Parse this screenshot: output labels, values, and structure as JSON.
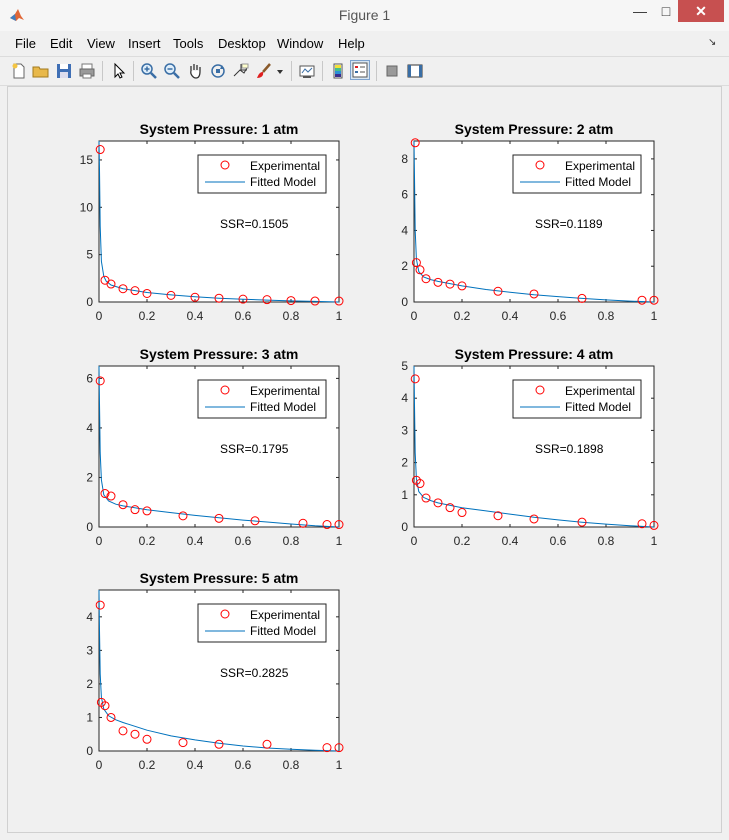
{
  "window": {
    "title": "Figure 1",
    "minimize_label": "—",
    "maximize_label": "□",
    "close_label": "✕"
  },
  "menu": {
    "items": [
      "File",
      "Edit",
      "View",
      "Insert",
      "Tools",
      "Desktop",
      "Window",
      "Help"
    ],
    "overflow": "↘"
  },
  "toolbar": {
    "tools": [
      "new-figure-icon",
      "open-file-icon",
      "save-icon",
      "print-icon",
      "pointer-icon",
      "zoom-in-icon",
      "zoom-out-icon",
      "pan-hand-icon",
      "rotate-3d-icon",
      "data-cursor-icon",
      "brush-icon",
      "brush-dropdown-icon",
      "link-plot-icon",
      "colorbar-icon",
      "legend-icon",
      "hide-plot-tools-icon",
      "show-plot-tools-icon"
    ],
    "pressed": "legend-icon"
  },
  "colors": {
    "experimental_marker": "#ff0000",
    "fitted_line": "#0072bd",
    "close_button": "#c75050"
  },
  "chart_data": [
    {
      "type": "scatter",
      "title": "System Pressure: 1 atm",
      "xlabel": "",
      "ylabel": "",
      "xlim": [
        0,
        1
      ],
      "ylim": [
        0,
        17
      ],
      "xticks": [
        "0",
        "0.2",
        "0.4",
        "0.6",
        "0.8",
        "1"
      ],
      "yticks": [
        {
          "v": 0,
          "l": "0"
        },
        {
          "v": 5,
          "l": "5"
        },
        {
          "v": 10,
          "l": "10"
        },
        {
          "v": 15,
          "l": "15"
        }
      ],
      "legend": [
        "Experimental",
        "Fitted Model"
      ],
      "legend_placement": "top-right",
      "annotation": "SSR=0.1505",
      "experimental": {
        "x": [
          0.005,
          0.025,
          0.05,
          0.1,
          0.15,
          0.2,
          0.3,
          0.4,
          0.5,
          0.6,
          0.7,
          0.8,
          0.9,
          1.0
        ],
        "y": [
          16.1,
          2.3,
          1.9,
          1.4,
          1.2,
          0.9,
          0.7,
          0.5,
          0.4,
          0.3,
          0.25,
          0.15,
          0.1,
          0.1
        ]
      },
      "fitted": {
        "x": [
          0,
          0.002,
          0.005,
          0.01,
          0.02,
          0.03,
          0.05,
          0.1,
          0.2,
          0.3,
          0.4,
          0.5,
          0.6,
          0.7,
          0.8,
          0.9,
          1.0
        ],
        "y": [
          17,
          14,
          8,
          4.3,
          2.7,
          2.2,
          1.8,
          1.4,
          1.0,
          0.75,
          0.55,
          0.4,
          0.3,
          0.2,
          0.12,
          0.06,
          0
        ]
      }
    },
    {
      "type": "scatter",
      "title": "System Pressure: 2 atm",
      "xlabel": "",
      "ylabel": "",
      "xlim": [
        0,
        1
      ],
      "ylim": [
        0,
        9
      ],
      "xticks": [
        "0",
        "0.2",
        "0.4",
        "0.6",
        "0.8",
        "1"
      ],
      "yticks": [
        {
          "v": 0,
          "l": "0"
        },
        {
          "v": 2,
          "l": "2"
        },
        {
          "v": 4,
          "l": "4"
        },
        {
          "v": 6,
          "l": "6"
        },
        {
          "v": 8,
          "l": "8"
        }
      ],
      "legend": [
        "Experimental",
        "Fitted Model"
      ],
      "legend_placement": "top-right",
      "annotation": "SSR=0.1189",
      "experimental": {
        "x": [
          0.005,
          0.01,
          0.025,
          0.05,
          0.1,
          0.15,
          0.2,
          0.35,
          0.5,
          0.7,
          0.95,
          1.0
        ],
        "y": [
          8.9,
          2.2,
          1.8,
          1.3,
          1.1,
          1.0,
          0.9,
          0.6,
          0.45,
          0.2,
          0.1,
          0.1
        ]
      },
      "fitted": {
        "x": [
          0,
          0.002,
          0.005,
          0.01,
          0.02,
          0.04,
          0.07,
          0.1,
          0.2,
          0.3,
          0.4,
          0.5,
          0.6,
          0.7,
          0.8,
          0.9,
          1.0
        ],
        "y": [
          9,
          7,
          4,
          2.4,
          1.7,
          1.4,
          1.25,
          1.15,
          0.9,
          0.7,
          0.55,
          0.4,
          0.3,
          0.2,
          0.12,
          0.05,
          0
        ]
      }
    },
    {
      "type": "scatter",
      "title": "System Pressure: 3 atm",
      "xlabel": "",
      "ylabel": "",
      "xlim": [
        0,
        1
      ],
      "ylim": [
        0,
        6.5
      ],
      "xticks": [
        "0",
        "0.2",
        "0.4",
        "0.6",
        "0.8",
        "1"
      ],
      "yticks": [
        {
          "v": 0,
          "l": "0"
        },
        {
          "v": 2,
          "l": "2"
        },
        {
          "v": 4,
          "l": "4"
        },
        {
          "v": 6,
          "l": "6"
        }
      ],
      "legend": [
        "Experimental",
        "Fitted Model"
      ],
      "legend_placement": "top-right",
      "annotation": "SSR=0.1795",
      "experimental": {
        "x": [
          0.005,
          0.025,
          0.05,
          0.1,
          0.15,
          0.2,
          0.35,
          0.5,
          0.65,
          0.85,
          0.95,
          1.0
        ],
        "y": [
          5.9,
          1.35,
          1.25,
          0.9,
          0.7,
          0.65,
          0.45,
          0.35,
          0.25,
          0.15,
          0.1,
          0.1
        ]
      },
      "fitted": {
        "x": [
          0,
          0.002,
          0.005,
          0.01,
          0.02,
          0.04,
          0.07,
          0.1,
          0.2,
          0.3,
          0.4,
          0.5,
          0.6,
          0.7,
          0.8,
          0.9,
          1.0
        ],
        "y": [
          6.5,
          5,
          3,
          1.9,
          1.3,
          1.05,
          0.92,
          0.85,
          0.7,
          0.58,
          0.47,
          0.37,
          0.28,
          0.2,
          0.12,
          0.05,
          0
        ]
      }
    },
    {
      "type": "scatter",
      "title": "System Pressure: 4 atm",
      "xlabel": "",
      "ylabel": "",
      "xlim": [
        0,
        1
      ],
      "ylim": [
        0,
        5
      ],
      "xticks": [
        "0",
        "0.2",
        "0.4",
        "0.6",
        "0.8",
        "1"
      ],
      "yticks": [
        {
          "v": 0,
          "l": "0"
        },
        {
          "v": 1,
          "l": "1"
        },
        {
          "v": 2,
          "l": "2"
        },
        {
          "v": 3,
          "l": "3"
        },
        {
          "v": 4,
          "l": "4"
        },
        {
          "v": 5,
          "l": "5"
        }
      ],
      "legend": [
        "Experimental",
        "Fitted Model"
      ],
      "legend_placement": "top-right",
      "annotation": "SSR=0.1898",
      "experimental": {
        "x": [
          0.005,
          0.01,
          0.025,
          0.05,
          0.1,
          0.15,
          0.2,
          0.35,
          0.5,
          0.7,
          0.95,
          1.0
        ],
        "y": [
          4.6,
          1.45,
          1.35,
          0.9,
          0.75,
          0.6,
          0.45,
          0.35,
          0.25,
          0.15,
          0.1,
          0.05
        ]
      },
      "fitted": {
        "x": [
          0,
          0.002,
          0.005,
          0.01,
          0.02,
          0.04,
          0.07,
          0.1,
          0.2,
          0.3,
          0.4,
          0.5,
          0.6,
          0.7,
          0.8,
          0.9,
          1.0
        ],
        "y": [
          5,
          3.8,
          2.3,
          1.5,
          1.1,
          0.92,
          0.82,
          0.75,
          0.6,
          0.5,
          0.4,
          0.3,
          0.22,
          0.15,
          0.09,
          0.04,
          0
        ]
      }
    },
    {
      "type": "scatter",
      "title": "System Pressure: 5 atm",
      "xlabel": "",
      "ylabel": "",
      "xlim": [
        0,
        1
      ],
      "ylim": [
        0,
        4.8
      ],
      "xticks": [
        "0",
        "0.2",
        "0.4",
        "0.6",
        "0.8",
        "1"
      ],
      "yticks": [
        {
          "v": 0,
          "l": "0"
        },
        {
          "v": 1,
          "l": "1"
        },
        {
          "v": 2,
          "l": "2"
        },
        {
          "v": 3,
          "l": "3"
        },
        {
          "v": 4,
          "l": "4"
        }
      ],
      "legend": [
        "Experimental",
        "Fitted Model"
      ],
      "legend_placement": "top-right",
      "annotation": "SSR=0.2825",
      "experimental": {
        "x": [
          0.005,
          0.01,
          0.025,
          0.05,
          0.1,
          0.15,
          0.2,
          0.35,
          0.5,
          0.7,
          0.95,
          1.0
        ],
        "y": [
          4.35,
          1.45,
          1.35,
          1.0,
          0.6,
          0.5,
          0.35,
          0.25,
          0.2,
          0.2,
          0.1,
          0.1
        ]
      },
      "fitted": {
        "x": [
          0,
          0.002,
          0.005,
          0.01,
          0.02,
          0.04,
          0.07,
          0.1,
          0.2,
          0.3,
          0.4,
          0.5,
          0.6,
          0.7,
          0.8,
          0.9,
          1.0
        ],
        "y": [
          4.8,
          3.6,
          2.3,
          1.6,
          1.25,
          1.05,
          0.93,
          0.85,
          0.62,
          0.45,
          0.33,
          0.23,
          0.15,
          0.09,
          0.05,
          0.02,
          0
        ]
      }
    }
  ]
}
